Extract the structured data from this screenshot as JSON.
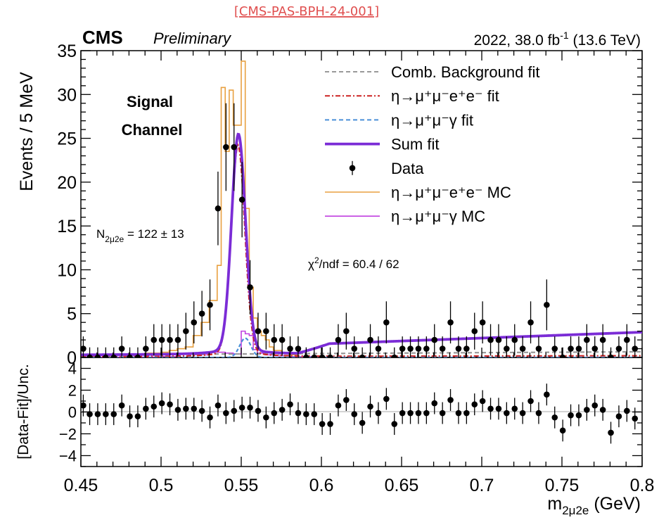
{
  "header": {
    "ref_label": "[CMS-PAS-BPH-24-001]",
    "experiment": "CMS",
    "status": "Preliminary",
    "lumi_year": "2022, 38.0 fb",
    "lumi_exp": "-1",
    "lumi_energy": " (13.6 TeV)"
  },
  "annotations": {
    "channel_line1": "Signal",
    "channel_line2": "Channel",
    "yield_label": "N",
    "yield_sub": "2μ2e",
    "yield_value": " = 122 ± 13",
    "chi2_label": "χ",
    "chi2_sup": "2",
    "chi2_value": "/ndf = 60.4 / 62"
  },
  "colors": {
    "background_fit": "#999999",
    "signal_fit": "#cc2222",
    "radiative_fit": "#4a8fd8",
    "sum_fit": "#7b2cd6",
    "data": "#000000",
    "signal_mc": "#e8a040",
    "radiative_mc": "#c040e0",
    "zero_line": "#bbbbbb"
  },
  "chart_data": {
    "type": "line",
    "x_axis": {
      "label_main": "m",
      "label_sub": "2μ2e",
      "label_unit": " (GeV)",
      "xlim": [
        0.45,
        0.8
      ],
      "ticks": [
        "0.45",
        "0.5",
        "0.55",
        "0.6",
        "0.65",
        "0.7",
        "0.75",
        "0.8"
      ],
      "tick_values": [
        0.45,
        0.5,
        0.55,
        0.6,
        0.65,
        0.7,
        0.75,
        0.8
      ]
    },
    "top_panel": {
      "ylabel": "Events / 5 MeV",
      "ylim": [
        0,
        35
      ],
      "yticks": [
        "0",
        "5",
        "10",
        "15",
        "20",
        "25",
        "30",
        "35"
      ],
      "ytick_values": [
        0,
        5,
        10,
        15,
        20,
        25,
        30,
        35
      ]
    },
    "bottom_panel": {
      "ylabel": "[Data-Fit]/Unc.",
      "ylim": [
        -5,
        5
      ],
      "yticks": [
        "−4",
        "−2",
        "0",
        "2",
        "4"
      ],
      "ytick_values": [
        -4,
        -2,
        0,
        2,
        4
      ]
    },
    "legend": {
      "position": "top-right",
      "entries": [
        {
          "label": "Comb. Background fit",
          "style": "dashed",
          "color_key": "background_fit"
        },
        {
          "label": "η→μ⁺μ⁻e⁺e⁻ fit",
          "style": "dashdot",
          "color_key": "signal_fit"
        },
        {
          "label": "η→μ⁺μ⁻γ fit",
          "style": "dashed",
          "color_key": "radiative_fit"
        },
        {
          "label": "Sum fit",
          "style": "solid-thick",
          "color_key": "sum_fit"
        },
        {
          "label": "Data",
          "style": "marker",
          "color_key": "data"
        },
        {
          "label": "η→μ⁺μ⁻e⁺e⁻ MC",
          "style": "solid",
          "color_key": "signal_mc"
        },
        {
          "label": "η→μ⁺μ⁻γ MC",
          "style": "solid",
          "color_key": "radiative_mc"
        }
      ]
    },
    "data_points": {
      "x": [
        0.4515,
        0.4555,
        0.4605,
        0.4655,
        0.4705,
        0.4755,
        0.4805,
        0.4855,
        0.4905,
        0.4955,
        0.5005,
        0.5055,
        0.5105,
        0.5155,
        0.5205,
        0.5255,
        0.5305,
        0.5355,
        0.5405,
        0.5455,
        0.5505,
        0.5555,
        0.5605,
        0.5655,
        0.5705,
        0.5755,
        0.5805,
        0.5855,
        0.5905,
        0.5955,
        0.6005,
        0.6055,
        0.6105,
        0.6155,
        0.6205,
        0.6255,
        0.6305,
        0.6355,
        0.6405,
        0.6455,
        0.6505,
        0.6555,
        0.6605,
        0.6655,
        0.6705,
        0.6755,
        0.6805,
        0.6855,
        0.6905,
        0.6955,
        0.7005,
        0.7055,
        0.7105,
        0.7155,
        0.7205,
        0.7255,
        0.7305,
        0.7355,
        0.7405,
        0.7455,
        0.7505,
        0.7555,
        0.7605,
        0.7655,
        0.7705,
        0.7755,
        0.7805,
        0.7855,
        0.7905,
        0.7955
      ],
      "y": [
        1,
        0,
        0,
        0,
        0,
        1,
        0,
        0,
        1,
        2,
        2,
        2,
        2,
        3,
        4,
        5,
        6,
        17,
        24,
        24,
        18,
        8,
        3,
        3,
        2,
        2,
        1,
        1,
        0,
        0,
        0,
        0,
        2,
        3,
        1,
        0,
        2,
        1,
        4,
        0,
        1,
        1,
        1,
        1,
        2,
        1,
        4,
        1,
        1,
        3,
        4,
        2,
        2,
        1,
        2,
        1,
        4,
        1,
        6,
        1,
        0,
        1,
        1,
        2,
        1,
        2,
        0,
        1,
        2,
        1
      ],
      "y_err": [
        1.4,
        1.15,
        1.15,
        1.15,
        1.15,
        1.4,
        1.15,
        1.15,
        1.4,
        1.8,
        1.8,
        1.8,
        1.8,
        2.1,
        2.4,
        2.6,
        2.9,
        4.2,
        5.0,
        5.0,
        4.3,
        3.1,
        2.1,
        2.1,
        1.8,
        1.8,
        1.4,
        1.4,
        1.15,
        1.15,
        1.15,
        1.15,
        1.8,
        2.1,
        1.4,
        1.15,
        1.8,
        1.4,
        2.4,
        1.15,
        1.4,
        1.4,
        1.4,
        1.4,
        1.8,
        1.4,
        2.4,
        1.4,
        1.4,
        2.1,
        2.4,
        1.8,
        1.8,
        1.4,
        1.8,
        1.4,
        2.4,
        1.4,
        2.9,
        1.4,
        1.15,
        1.4,
        1.4,
        1.8,
        1.4,
        1.8,
        1.15,
        1.4,
        1.8,
        1.4
      ]
    },
    "pulls": {
      "x": [
        0.4515,
        0.4555,
        0.4605,
        0.4655,
        0.4705,
        0.4755,
        0.4805,
        0.4855,
        0.4905,
        0.4955,
        0.5005,
        0.5055,
        0.5105,
        0.5155,
        0.5205,
        0.5255,
        0.5305,
        0.5355,
        0.5405,
        0.5455,
        0.5505,
        0.5555,
        0.5605,
        0.5655,
        0.5705,
        0.5755,
        0.5805,
        0.5855,
        0.5905,
        0.5955,
        0.6005,
        0.6055,
        0.6105,
        0.6155,
        0.6205,
        0.6255,
        0.6305,
        0.6355,
        0.6405,
        0.6455,
        0.6505,
        0.6555,
        0.6605,
        0.6655,
        0.6705,
        0.6755,
        0.6805,
        0.6855,
        0.6905,
        0.6955,
        0.7005,
        0.7055,
        0.7105,
        0.7155,
        0.7205,
        0.7255,
        0.7305,
        0.7355,
        0.7405,
        0.7455,
        0.7505,
        0.7555,
        0.7605,
        0.7655,
        0.7705,
        0.7755,
        0.7805,
        0.7855,
        0.7905,
        0.7955
      ],
      "y": [
        0.6,
        -0.2,
        -0.2,
        -0.2,
        -0.2,
        0.6,
        -0.4,
        -0.4,
        0.3,
        0.5,
        0.8,
        0.7,
        0.2,
        0.3,
        0.3,
        0.1,
        -0.5,
        0.6,
        -0.1,
        0.1,
        0.4,
        0.4,
        0.1,
        -0.5,
        -0.1,
        0.2,
        0.7,
        -0.1,
        -0.2,
        -0.2,
        -1.1,
        -1.1,
        0.6,
        1.1,
        -0.2,
        -1.0,
        0.5,
        -0.1,
        1.2,
        -1.1,
        -0.1,
        -0.1,
        -0.1,
        -0.1,
        0.8,
        -0.1,
        1.1,
        -0.1,
        -0.1,
        0.7,
        1.0,
        0.3,
        0.3,
        -0.1,
        0.3,
        -0.1,
        1.0,
        -0.1,
        1.6,
        -0.5,
        -1.7,
        -0.3,
        -0.3,
        0.2,
        0.6,
        0.2,
        -1.9,
        -0.4,
        0.1,
        -0.6
      ],
      "y_err": [
        1,
        1,
        1,
        1,
        1,
        1,
        1,
        1,
        1,
        1,
        1,
        1,
        1,
        1,
        1,
        1,
        1,
        1,
        1,
        1,
        1,
        1,
        1,
        1,
        1,
        1,
        1,
        1,
        1,
        1,
        1,
        1,
        1,
        1,
        1,
        1,
        1,
        1,
        1,
        1,
        1,
        1,
        1,
        1,
        1,
        1,
        1,
        1,
        1,
        1,
        1,
        1,
        1,
        1,
        1,
        1,
        1,
        1,
        1,
        1,
        1,
        1,
        1,
        1,
        1,
        1,
        1,
        1,
        1,
        1
      ]
    },
    "fit_model": {
      "background": {
        "a": 0.3,
        "b": 0.35,
        "x0": 0.45
      },
      "signal": {
        "mean": 0.548,
        "sigma": 0.0042,
        "amplitude": 23.2
      },
      "radiative": {
        "mean": 0.5525,
        "sigma": 0.0035,
        "amplitude": 2.2
      },
      "continuum": {
        "start": 0.585,
        "base": 1.0,
        "slope": 5.0
      }
    },
    "signal_mc_hist": {
      "edges": [
        0.45,
        0.47,
        0.49,
        0.5,
        0.505,
        0.51,
        0.515,
        0.52,
        0.525,
        0.53,
        0.535,
        0.5375,
        0.54,
        0.5425,
        0.545,
        0.5475,
        0.55,
        0.5525,
        0.555,
        0.5575,
        0.56,
        0.5625,
        0.565,
        0.5675,
        0.57,
        0.575,
        0.58,
        0.585,
        0.59
      ],
      "values": [
        0.3,
        0.4,
        0.5,
        0.6,
        0.8,
        1.0,
        1.2,
        2.5,
        4.0,
        6.5,
        10.5,
        30.8,
        23.5,
        30.5,
        26.5,
        26.5,
        33.8,
        17.0,
        8.0,
        4.5,
        3.0,
        2.5,
        2.0,
        1.2,
        0.8,
        0.5,
        0.3,
        0.0
      ]
    },
    "radiative_mc_hist": {
      "edges": [
        0.45,
        0.5,
        0.51,
        0.52,
        0.53,
        0.54,
        0.545,
        0.55,
        0.5525,
        0.555,
        0.5575,
        0.56,
        0.565,
        0.57,
        0.58,
        0.6
      ],
      "values": [
        0.05,
        0.1,
        0.5,
        0.3,
        0.6,
        0.5,
        0.4,
        3.0,
        2.7,
        2.5,
        0.9,
        0.5,
        0.3,
        0.2,
        0.1
      ]
    }
  }
}
